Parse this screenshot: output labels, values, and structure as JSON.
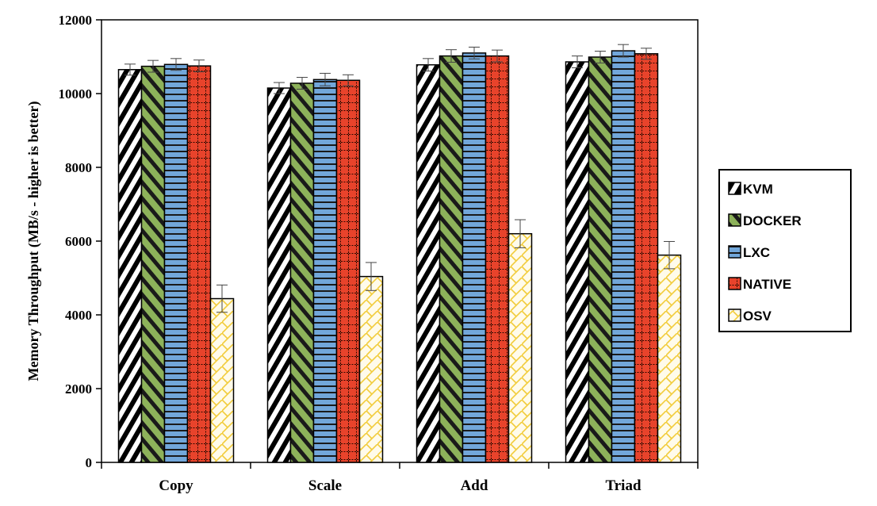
{
  "chart_data": {
    "type": "bar",
    "title": "",
    "xlabel": "",
    "ylabel": "Memory Throughput (MB/s - higher is better)",
    "ylim": [
      0,
      12000
    ],
    "yticks": [
      0,
      2000,
      4000,
      6000,
      8000,
      10000,
      12000
    ],
    "grid": false,
    "legend_position": "right",
    "categories": [
      "Copy",
      "Scale",
      "Add",
      "Triad"
    ],
    "series": [
      {
        "name": "KVM",
        "values": [
          10650,
          10150,
          10780,
          10860
        ],
        "errors": [
          150,
          150,
          170,
          160
        ],
        "color": "#ffffff",
        "pattern": "diag-black"
      },
      {
        "name": "DOCKER",
        "values": [
          10740,
          10280,
          11020,
          10990
        ],
        "errors": [
          160,
          160,
          170,
          160
        ],
        "color": "#8db25a",
        "pattern": "diag-green"
      },
      {
        "name": "LXC",
        "values": [
          10790,
          10380,
          11100,
          11160
        ],
        "errors": [
          160,
          170,
          160,
          170
        ],
        "color": "#6fa6d8",
        "pattern": "horiz-blue"
      },
      {
        "name": "NATIVE",
        "values": [
          10750,
          10360,
          11020,
          11080
        ],
        "errors": [
          160,
          150,
          160,
          150
        ],
        "color": "#e8422b",
        "pattern": "grid-red"
      },
      {
        "name": "OSV",
        "values": [
          4440,
          5040,
          6200,
          5620
        ],
        "errors": [
          370,
          380,
          380,
          370
        ],
        "color": "#fff7d6",
        "pattern": "brick-yellow"
      }
    ]
  }
}
